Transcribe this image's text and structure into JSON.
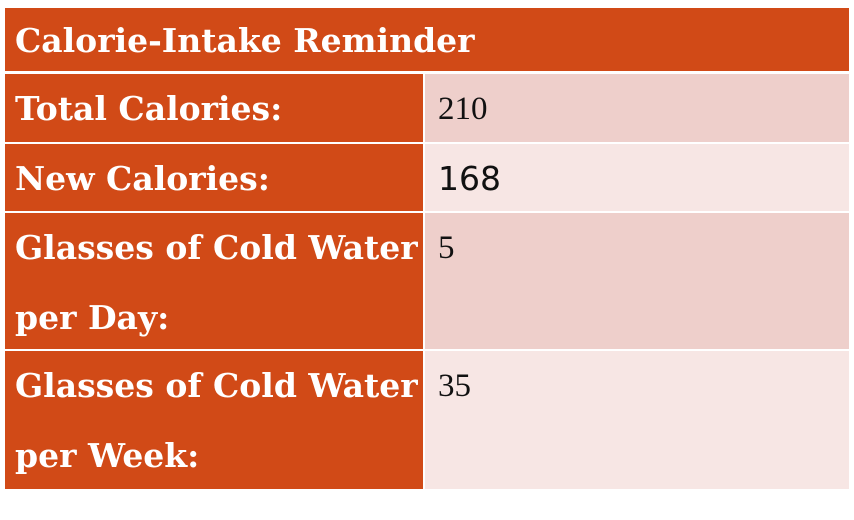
{
  "title": "Calorie-Intake Reminder",
  "rows": [
    {
      "label": "Total Calories:",
      "value": "210"
    },
    {
      "label": "New Calories:",
      "value": "168"
    },
    {
      "label": "Glasses of Cold Water per Day:",
      "value": "5"
    },
    {
      "label": "Glasses of Cold Water per Week:",
      "value": "35"
    }
  ],
  "colors": {
    "header_bg": "#d14a17",
    "value_bg_dark": "#eecfcb",
    "value_bg_light": "#f7e6e4",
    "text_light": "#ffffff",
    "text_dark": "#111111"
  }
}
